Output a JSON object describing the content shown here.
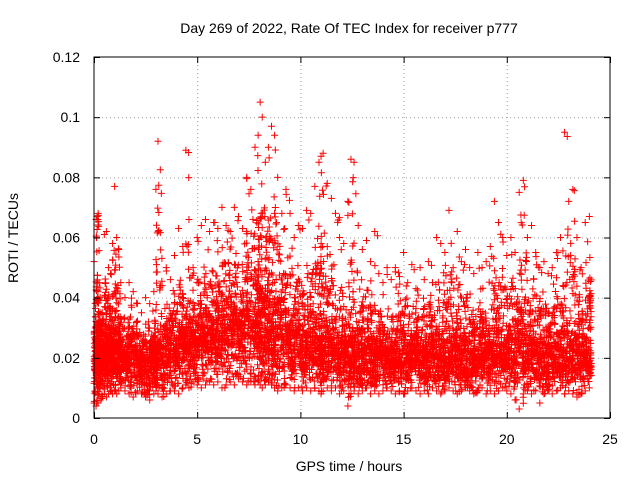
{
  "chart_data": {
    "type": "scatter",
    "title": "Day 269 of 2022, Rate Of TEC Index for receiver p777",
    "xlabel": "GPS time / hours",
    "ylabel": "ROTI / TECUs",
    "xlim": [
      0,
      25
    ],
    "ylim": [
      0,
      0.12
    ],
    "xticks": [
      0,
      5,
      10,
      15,
      20,
      25
    ],
    "yticks": [
      0,
      0.02,
      0.04,
      0.06,
      0.08,
      0.1,
      0.12
    ],
    "xtick_labels": [
      "0",
      "5",
      "10",
      "15",
      "20",
      "25"
    ],
    "ytick_labels": [
      "0",
      "0.02",
      "0.04",
      "0.06",
      "0.08",
      "0.1",
      "0.12"
    ],
    "grid": true,
    "marker": "+",
    "color": "#ff0000",
    "series": [
      {
        "name": "ROTI",
        "x": [
          0.0,
          0.1,
          0.15,
          0.2,
          0.25,
          0.3,
          0.4,
          0.5,
          0.6,
          0.7,
          0.8,
          0.9,
          1.0,
          1.1,
          1.2,
          1.3,
          1.5,
          1.7,
          1.9,
          2.1,
          2.3,
          2.5,
          2.7,
          2.9,
          3.0,
          3.1,
          3.3,
          3.5,
          3.7,
          3.9,
          4.1,
          4.3,
          4.45,
          4.6,
          4.8,
          5.0,
          5.2,
          5.4,
          5.6,
          5.8,
          6.0,
          6.2,
          6.4,
          6.6,
          6.8,
          7.0,
          7.2,
          7.4,
          7.6,
          7.8,
          7.95,
          8.05,
          8.15,
          8.3,
          8.45,
          8.6,
          8.75,
          8.9,
          9.1,
          9.3,
          9.5,
          9.7,
          9.9,
          10.1,
          10.3,
          10.5,
          10.7,
          10.9,
          11.0,
          11.1,
          11.3,
          11.5,
          11.7,
          11.9,
          12.1,
          12.3,
          12.45,
          12.6,
          12.8,
          13.0,
          13.2,
          13.4,
          13.6,
          13.8,
          14.0,
          14.2,
          14.4,
          14.6,
          14.8,
          15.0,
          15.2,
          15.4,
          15.6,
          15.8,
          16.0,
          16.2,
          16.4,
          16.6,
          16.8,
          17.0,
          17.2,
          17.4,
          17.6,
          17.8,
          18.0,
          18.2,
          18.4,
          18.6,
          18.8,
          19.0,
          19.2,
          19.4,
          19.6,
          19.8,
          20.0,
          20.2,
          20.4,
          20.6,
          20.8,
          21.0,
          21.2,
          21.4,
          21.6,
          21.8,
          22.0,
          22.2,
          22.4,
          22.6,
          22.8,
          23.0,
          23.2,
          23.4,
          23.6,
          23.8,
          24.0
        ],
        "y": [
          0.052,
          0.066,
          0.067,
          0.068,
          0.045,
          0.04,
          0.035,
          0.061,
          0.062,
          0.05,
          0.048,
          0.058,
          0.077,
          0.06,
          0.056,
          0.045,
          0.04,
          0.045,
          0.042,
          0.038,
          0.035,
          0.04,
          0.038,
          0.042,
          0.076,
          0.092,
          0.044,
          0.05,
          0.046,
          0.054,
          0.063,
          0.057,
          0.089,
          0.066,
          0.05,
          0.06,
          0.064,
          0.066,
          0.062,
          0.065,
          0.063,
          0.07,
          0.064,
          0.062,
          0.07,
          0.067,
          0.063,
          0.08,
          0.076,
          0.09,
          0.094,
          0.105,
          0.1,
          0.085,
          0.09,
          0.097,
          0.094,
          0.08,
          0.068,
          0.076,
          0.068,
          0.06,
          0.064,
          0.063,
          0.069,
          0.068,
          0.077,
          0.085,
          0.087,
          0.088,
          0.078,
          0.073,
          0.068,
          0.06,
          0.058,
          0.072,
          0.086,
          0.085,
          0.064,
          0.056,
          0.059,
          0.052,
          0.062,
          0.048,
          0.045,
          0.05,
          0.046,
          0.05,
          0.047,
          0.055,
          0.045,
          0.051,
          0.043,
          0.05,
          0.046,
          0.052,
          0.045,
          0.06,
          0.058,
          0.055,
          0.069,
          0.05,
          0.062,
          0.052,
          0.056,
          0.05,
          0.048,
          0.055,
          0.05,
          0.052,
          0.057,
          0.072,
          0.065,
          0.06,
          0.054,
          0.06,
          0.055,
          0.075,
          0.079,
          0.06,
          0.064,
          0.055,
          0.05,
          0.052,
          0.048,
          0.05,
          0.055,
          0.06,
          0.095,
          0.072,
          0.076,
          0.06,
          0.05,
          0.065,
          0.067
        ],
        "low": [
          0.005,
          0.004,
          0.006,
          0.005,
          0.008,
          0.006,
          0.007,
          0.008,
          0.007,
          0.008,
          0.009,
          0.008,
          0.009,
          0.008,
          0.009,
          0.01,
          0.009,
          0.008,
          0.007,
          0.009,
          0.008,
          0.007,
          0.006,
          0.008,
          0.009,
          0.008,
          0.007,
          0.008,
          0.009,
          0.009,
          0.008,
          0.01,
          0.011,
          0.01,
          0.012,
          0.011,
          0.01,
          0.011,
          0.012,
          0.011,
          0.012,
          0.01,
          0.011,
          0.012,
          0.011,
          0.013,
          0.012,
          0.011,
          0.012,
          0.011,
          0.012,
          0.011,
          0.01,
          0.011,
          0.012,
          0.011,
          0.01,
          0.009,
          0.01,
          0.011,
          0.01,
          0.009,
          0.01,
          0.009,
          0.01,
          0.009,
          0.01,
          0.009,
          0.008,
          0.009,
          0.01,
          0.009,
          0.01,
          0.008,
          0.009,
          0.004,
          0.008,
          0.009,
          0.008,
          0.009,
          0.01,
          0.008,
          0.009,
          0.008,
          0.009,
          0.01,
          0.009,
          0.008,
          0.009,
          0.008,
          0.009,
          0.01,
          0.009,
          0.008,
          0.009,
          0.008,
          0.01,
          0.009,
          0.008,
          0.009,
          0.01,
          0.009,
          0.008,
          0.009,
          0.01,
          0.009,
          0.008,
          0.009,
          0.01,
          0.008,
          0.009,
          0.008,
          0.009,
          0.01,
          0.009,
          0.008,
          0.006,
          0.003,
          0.008,
          0.009,
          0.008,
          0.009,
          0.005,
          0.008,
          0.009,
          0.008,
          0.009,
          0.01,
          0.008,
          0.009,
          0.008,
          0.007,
          0.008,
          0.009,
          0.01
        ],
        "mid": [
          0.018,
          0.017,
          0.02,
          0.019,
          0.019,
          0.02,
          0.019,
          0.021,
          0.02,
          0.022,
          0.021,
          0.02,
          0.022,
          0.021,
          0.02,
          0.019,
          0.018,
          0.019,
          0.018,
          0.017,
          0.018,
          0.017,
          0.018,
          0.019,
          0.02,
          0.019,
          0.02,
          0.021,
          0.022,
          0.021,
          0.022,
          0.023,
          0.024,
          0.023,
          0.024,
          0.025,
          0.024,
          0.026,
          0.025,
          0.027,
          0.026,
          0.028,
          0.027,
          0.026,
          0.028,
          0.027,
          0.028,
          0.029,
          0.028,
          0.03,
          0.031,
          0.03,
          0.029,
          0.028,
          0.027,
          0.028,
          0.027,
          0.026,
          0.025,
          0.024,
          0.023,
          0.024,
          0.023,
          0.022,
          0.023,
          0.022,
          0.023,
          0.022,
          0.021,
          0.022,
          0.021,
          0.022,
          0.021,
          0.02,
          0.021,
          0.02,
          0.021,
          0.02,
          0.019,
          0.02,
          0.021,
          0.02,
          0.019,
          0.02,
          0.019,
          0.018,
          0.019,
          0.02,
          0.019,
          0.018,
          0.019,
          0.02,
          0.019,
          0.018,
          0.019,
          0.02,
          0.019,
          0.02,
          0.019,
          0.02,
          0.021,
          0.02,
          0.019,
          0.02,
          0.019,
          0.018,
          0.019,
          0.02,
          0.019,
          0.02,
          0.021,
          0.022,
          0.021,
          0.02,
          0.021,
          0.02,
          0.021,
          0.022,
          0.02,
          0.019,
          0.02,
          0.019,
          0.018,
          0.019,
          0.02,
          0.019,
          0.02,
          0.021,
          0.02,
          0.019,
          0.02,
          0.019,
          0.018,
          0.019,
          0.018
        ]
      }
    ]
  }
}
